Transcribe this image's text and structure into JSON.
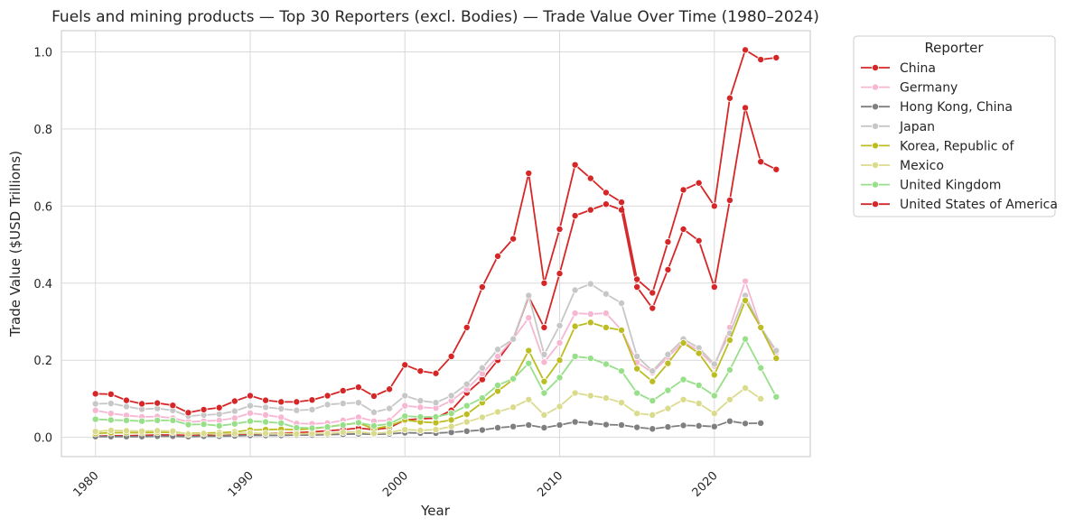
{
  "chart_data": {
    "type": "line",
    "title": "Fuels and mining products — Top 30 Reporters (excl. Bodies) — Trade Value Over Time (1980–2024)",
    "xlabel": "Year",
    "ylabel": "Trade Value ($USD Trillions)",
    "xlim": [
      1977.8,
      2026.2
    ],
    "ylim": [
      -0.05,
      1.055
    ],
    "x_ticks": [
      1980,
      1990,
      2000,
      2010,
      2020
    ],
    "y_ticks": [
      0.0,
      0.2,
      0.4,
      0.6,
      0.8,
      1.0
    ],
    "y_tick_labels": [
      "0.0",
      "0.2",
      "0.4",
      "0.6",
      "0.8",
      "1.0"
    ],
    "grid": true,
    "legend_title": "Reporter",
    "legend_position": "outside-right",
    "x": [
      1980,
      1981,
      1982,
      1983,
      1984,
      1985,
      1986,
      1987,
      1988,
      1989,
      1990,
      1991,
      1992,
      1993,
      1994,
      1995,
      1996,
      1997,
      1998,
      1999,
      2000,
      2001,
      2002,
      2003,
      2004,
      2005,
      2006,
      2007,
      2008,
      2009,
      2010,
      2011,
      2012,
      2013,
      2014,
      2015,
      2016,
      2017,
      2018,
      2019,
      2020,
      2021,
      2022,
      2023,
      2024
    ],
    "series": [
      {
        "name": "China",
        "color": "#d62728",
        "values": [
          0.003,
          0.004,
          0.004,
          0.005,
          0.006,
          0.006,
          0.005,
          0.006,
          0.007,
          0.008,
          0.009,
          0.01,
          0.011,
          0.012,
          0.014,
          0.017,
          0.02,
          0.024,
          0.02,
          0.025,
          0.045,
          0.048,
          0.05,
          0.07,
          0.115,
          0.15,
          0.2,
          0.255,
          0.365,
          0.285,
          0.425,
          0.575,
          0.59,
          0.605,
          0.59,
          0.39,
          0.335,
          0.435,
          0.54,
          0.51,
          0.39,
          0.615,
          0.855,
          0.715,
          0.695
        ]
      },
      {
        "name": "Germany",
        "color": "#f7b6d2",
        "values": [
          0.07,
          0.062,
          0.057,
          0.053,
          0.054,
          0.05,
          0.04,
          0.042,
          0.044,
          0.05,
          0.063,
          0.058,
          0.052,
          0.036,
          0.035,
          0.037,
          0.044,
          0.052,
          0.042,
          0.044,
          0.082,
          0.078,
          0.076,
          0.095,
          0.125,
          0.165,
          0.21,
          0.255,
          0.31,
          0.195,
          0.245,
          0.322,
          0.32,
          0.322,
          0.278,
          0.195,
          0.168,
          0.208,
          0.248,
          0.225,
          0.185,
          0.285,
          0.405,
          0.285,
          0.22
        ]
      },
      {
        "name": "Hong Kong, China",
        "color": "#7f7f7f",
        "values": [
          0.002,
          0.002,
          0.002,
          0.002,
          0.003,
          0.003,
          0.002,
          0.003,
          0.003,
          0.004,
          0.005,
          0.005,
          0.005,
          0.006,
          0.006,
          0.007,
          0.008,
          0.009,
          0.008,
          0.009,
          0.012,
          0.011,
          0.011,
          0.013,
          0.016,
          0.019,
          0.025,
          0.028,
          0.032,
          0.025,
          0.032,
          0.04,
          0.037,
          0.033,
          0.032,
          0.026,
          0.022,
          0.027,
          0.031,
          0.03,
          0.028,
          0.042,
          0.036,
          0.037,
          null
        ]
      },
      {
        "name": "Japan",
        "color": "#c7c7c7",
        "values": [
          0.087,
          0.088,
          0.08,
          0.073,
          0.075,
          0.07,
          0.055,
          0.058,
          0.06,
          0.068,
          0.082,
          0.078,
          0.074,
          0.07,
          0.072,
          0.085,
          0.088,
          0.09,
          0.065,
          0.075,
          0.108,
          0.095,
          0.09,
          0.108,
          0.138,
          0.18,
          0.228,
          0.255,
          0.368,
          0.215,
          0.29,
          0.382,
          0.398,
          0.372,
          0.348,
          0.21,
          0.172,
          0.215,
          0.255,
          0.232,
          0.19,
          0.27,
          0.368,
          0.285,
          0.225
        ]
      },
      {
        "name": "Korea, Republic of",
        "color": "#bcbd22",
        "values": [
          0.01,
          0.012,
          0.012,
          0.012,
          0.013,
          0.013,
          0.01,
          0.011,
          0.012,
          0.014,
          0.019,
          0.02,
          0.021,
          0.02,
          0.022,
          0.027,
          0.033,
          0.037,
          0.022,
          0.03,
          0.045,
          0.04,
          0.038,
          0.045,
          0.06,
          0.09,
          0.12,
          0.15,
          0.225,
          0.145,
          0.2,
          0.288,
          0.298,
          0.285,
          0.278,
          0.178,
          0.145,
          0.192,
          0.245,
          0.218,
          0.162,
          0.252,
          0.355,
          0.285,
          0.205
        ]
      },
      {
        "name": "Mexico",
        "color": "#dbdb8d",
        "values": [
          0.015,
          0.018,
          0.017,
          0.016,
          0.017,
          0.016,
          0.008,
          0.01,
          0.008,
          0.01,
          0.011,
          0.01,
          0.01,
          0.009,
          0.01,
          0.01,
          0.013,
          0.014,
          0.01,
          0.013,
          0.02,
          0.018,
          0.02,
          0.028,
          0.04,
          0.052,
          0.066,
          0.078,
          0.098,
          0.058,
          0.08,
          0.115,
          0.108,
          0.102,
          0.09,
          0.062,
          0.058,
          0.075,
          0.098,
          0.088,
          0.062,
          0.098,
          0.128,
          0.1,
          null
        ]
      },
      {
        "name": "United Kingdom",
        "color": "#98df8a",
        "values": [
          0.047,
          0.045,
          0.044,
          0.042,
          0.044,
          0.044,
          0.033,
          0.034,
          0.03,
          0.035,
          0.042,
          0.04,
          0.037,
          0.025,
          0.024,
          0.027,
          0.032,
          0.038,
          0.03,
          0.035,
          0.055,
          0.053,
          0.053,
          0.062,
          0.082,
          0.102,
          0.135,
          0.152,
          0.192,
          0.115,
          0.155,
          0.21,
          0.205,
          0.19,
          0.172,
          0.115,
          0.095,
          0.122,
          0.15,
          0.135,
          0.108,
          0.175,
          0.255,
          0.18,
          0.105
        ]
      },
      {
        "name": "United States of America",
        "color": "#d62728",
        "values": [
          0.113,
          0.112,
          0.096,
          0.087,
          0.089,
          0.083,
          0.064,
          0.072,
          0.077,
          0.094,
          0.108,
          0.096,
          0.092,
          0.092,
          0.097,
          0.108,
          0.121,
          0.13,
          0.107,
          0.125,
          0.188,
          0.172,
          0.166,
          0.21,
          0.285,
          0.39,
          0.47,
          0.515,
          0.685,
          0.4,
          0.54,
          0.707,
          0.672,
          0.635,
          0.61,
          0.41,
          0.375,
          0.507,
          0.642,
          0.66,
          0.6,
          0.88,
          1.005,
          0.98,
          0.985
        ]
      }
    ]
  }
}
